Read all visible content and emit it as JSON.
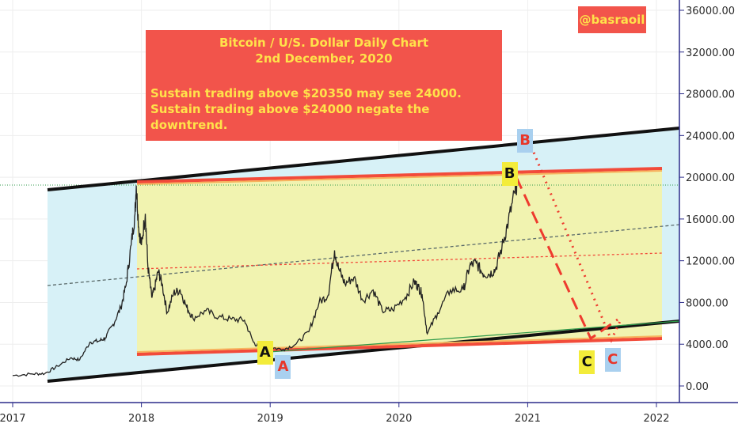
{
  "handle": "@basraoil",
  "note": {
    "title_line1": "Bitcoin / U/S. Dollar Daily Chart",
    "title_line2": "2nd December, 2020",
    "line1": "Sustain trading above $20350 may see 24000.",
    "line2": "Sustain trading above $24000 negate the downtrend."
  },
  "colors": {
    "price": "#222222",
    "blue_channel_fill": "#d7f1f7",
    "yellow_channel_fill": "#f1f3b0",
    "orange_line": "#f24b3a",
    "label_yellow": "#f3ec3a",
    "label_blue": "#a9d0ef"
  },
  "chart_data": {
    "type": "line",
    "title": "Bitcoin / U/S. Dollar Daily Chart",
    "subtitle": "2nd December, 2020",
    "ylim": [
      -1000,
      37000
    ],
    "xlim": [
      2017.0,
      2022.15
    ],
    "y_ticks": [
      0,
      4000,
      8000,
      12000,
      16000,
      20000,
      24000,
      28000,
      32000,
      36000
    ],
    "y_tick_labels": [
      "0.00",
      "4000.00",
      "8000.00",
      "12000.00",
      "16000.00",
      "20000.00",
      "24000.00",
      "28000.00",
      "32000.00",
      "36000.00"
    ],
    "x_ticks": [
      2017,
      2018,
      2019,
      2020,
      2021,
      2022
    ],
    "x_tick_labels": [
      "2017",
      "2018",
      "2019",
      "2020",
      "2021",
      "2022"
    ],
    "series": [
      {
        "x": [
          2017.0,
          2017.15,
          2017.25,
          2017.35,
          2017.45,
          2017.52,
          2017.6,
          2017.67,
          2017.72,
          2017.78,
          2017.84,
          2017.88,
          2017.92,
          2017.95,
          2017.96,
          2017.98,
          2018.0,
          2018.03,
          2018.05,
          2018.08,
          2018.1,
          2018.13,
          2018.16,
          2018.2,
          2018.25,
          2018.3,
          2018.35,
          2018.4,
          2018.5,
          2018.6,
          2018.7,
          2018.8,
          2018.87,
          2018.92,
          2018.96,
          2019.0,
          2019.1,
          2019.2,
          2019.3,
          2019.38,
          2019.45,
          2019.5,
          2019.53,
          2019.58,
          2019.65,
          2019.72,
          2019.8,
          2019.87,
          2019.95,
          2020.05,
          2020.12,
          2020.15,
          2020.18,
          2020.22,
          2020.3,
          2020.4,
          2020.5,
          2020.55,
          2020.6,
          2020.65,
          2020.7,
          2020.75,
          2020.8,
          2020.85,
          2020.9,
          2020.92
        ],
        "values": [
          1000,
          1150,
          1200,
          1900,
          2700,
          2500,
          4200,
          4300,
          4600,
          5900,
          7500,
          9600,
          13500,
          16500,
          19200,
          15000,
          13500,
          16500,
          11500,
          8500,
          9200,
          11000,
          9800,
          7000,
          8900,
          9200,
          7600,
          6500,
          7200,
          6600,
          6400,
          6300,
          4200,
          3600,
          3800,
          3700,
          3500,
          4000,
          5200,
          8000,
          8700,
          13000,
          11300,
          9800,
          10400,
          8200,
          9200,
          7200,
          7300,
          8500,
          10000,
          9500,
          8800,
          5000,
          7000,
          9200,
          9200,
          11500,
          11800,
          10800,
          10700,
          11200,
          13300,
          15800,
          18500,
          19700
        ]
      }
    ],
    "annotations": [
      {
        "label": "A",
        "x": 2018.96,
        "y": 3200,
        "style": "yellow"
      },
      {
        "label": "A",
        "x": 2019.1,
        "y": 1800,
        "style": "blue"
      },
      {
        "label": "B",
        "x": 2020.86,
        "y": 20300,
        "style": "yellow"
      },
      {
        "label": "B",
        "x": 2020.98,
        "y": 23500,
        "style": "blue"
      },
      {
        "label": "C",
        "x": 2021.46,
        "y": 2300,
        "style": "yellow"
      },
      {
        "label": "C",
        "x": 2021.66,
        "y": 2500,
        "style": "blue"
      }
    ]
  }
}
